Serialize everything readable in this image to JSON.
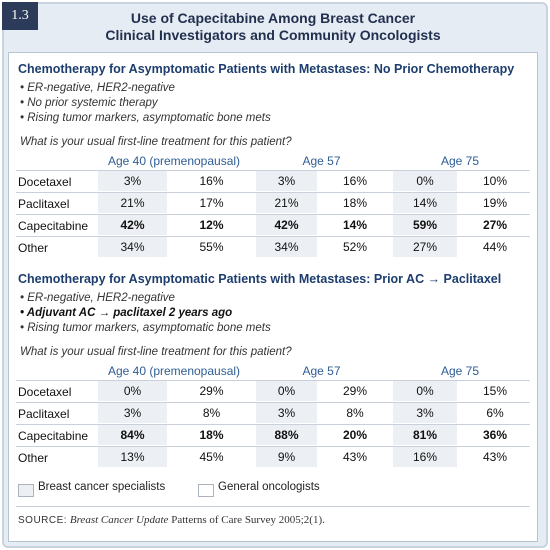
{
  "figure_number": "1.3",
  "title": [
    "Use of Capecitabine Among Breast Cancer",
    "Clinical Investigators and Community Oncologists"
  ],
  "sections": [
    {
      "heading": "Chemotherapy for Asymptomatic Patients with Metastases: No Prior Chemotherapy",
      "bullets": [
        "ER-negative, HER2-negative",
        "No prior systemic therapy",
        "Rising tumor markers, asymptomatic bone mets"
      ],
      "question": "What is your usual first-line treatment for this patient?",
      "age_groups": [
        "Age 40 (premenopausal)",
        "Age 57",
        "Age 75"
      ],
      "rows": [
        {
          "drug": "Docetaxel",
          "values": [
            "3%",
            "16%",
            "3%",
            "16%",
            "0%",
            "10%"
          ]
        },
        {
          "drug": "Paclitaxel",
          "values": [
            "21%",
            "17%",
            "21%",
            "18%",
            "14%",
            "19%"
          ]
        },
        {
          "drug": "Capecitabine",
          "values": [
            "42%",
            "12%",
            "42%",
            "14%",
            "59%",
            "27%"
          ]
        },
        {
          "drug": "Other",
          "values": [
            "34%",
            "55%",
            "34%",
            "52%",
            "27%",
            "44%"
          ]
        }
      ]
    },
    {
      "heading": "Chemotherapy for Asymptomatic Patients with Metastases: Prior AC → Paclitaxel",
      "bullets": [
        "ER-negative, HER2-negative",
        "Adjuvant AC → paclitaxel 2 years ago",
        "Rising tumor markers, asymptomatic bone mets"
      ],
      "question": "What is your usual first-line treatment for this patient?",
      "age_groups": [
        "Age 40 (premenopausal)",
        "Age 57",
        "Age 75"
      ],
      "rows": [
        {
          "drug": "Docetaxel",
          "values": [
            "0%",
            "29%",
            "0%",
            "29%",
            "0%",
            "15%"
          ]
        },
        {
          "drug": "Paclitaxel",
          "values": [
            "3%",
            "8%",
            "3%",
            "8%",
            "3%",
            "6%"
          ]
        },
        {
          "drug": "Capecitabine",
          "values": [
            "84%",
            "18%",
            "88%",
            "20%",
            "81%",
            "36%"
          ]
        },
        {
          "drug": "Other",
          "values": [
            "13%",
            "45%",
            "9%",
            "43%",
            "16%",
            "43%"
          ]
        }
      ]
    }
  ],
  "legend": [
    "Breast cancer specialists",
    "General oncologists"
  ],
  "source": {
    "label": "SOURCE:",
    "journal": "Breast Cancer Update",
    "text": "Patterns of Care Survey 2005;2(1)."
  }
}
